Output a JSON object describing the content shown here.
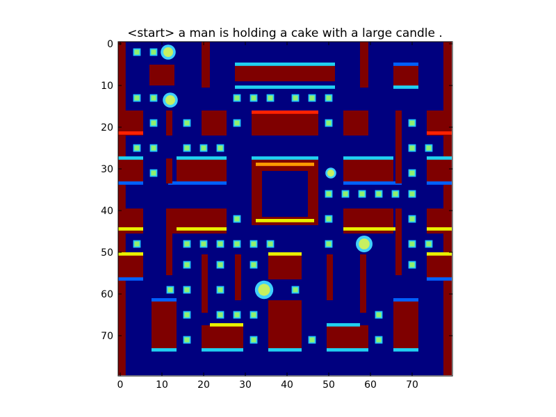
{
  "title": "<start> a man is holding a cake with a large candle .",
  "x_ticks": [
    "0",
    "10",
    "20",
    "30",
    "40",
    "50",
    "60",
    "70"
  ],
  "y_ticks": [
    "0",
    "10",
    "20",
    "30",
    "40",
    "50",
    "60",
    "70"
  ],
  "colormap": {
    "background": "#00007f",
    "wall": "#7f0000",
    "wall_edge_red": "#ff2200",
    "wall_edge_orange": "#ff9900",
    "wall_edge_yellow": "#e8f000",
    "wall_edge_cyan": "#20d0f0",
    "wall_edge_blue": "#0060ff",
    "pellet": "#90f070",
    "pellet_ring": "#20c8ff"
  },
  "image_extent": {
    "x": [
      0,
      80
    ],
    "y": [
      80,
      0
    ]
  }
}
